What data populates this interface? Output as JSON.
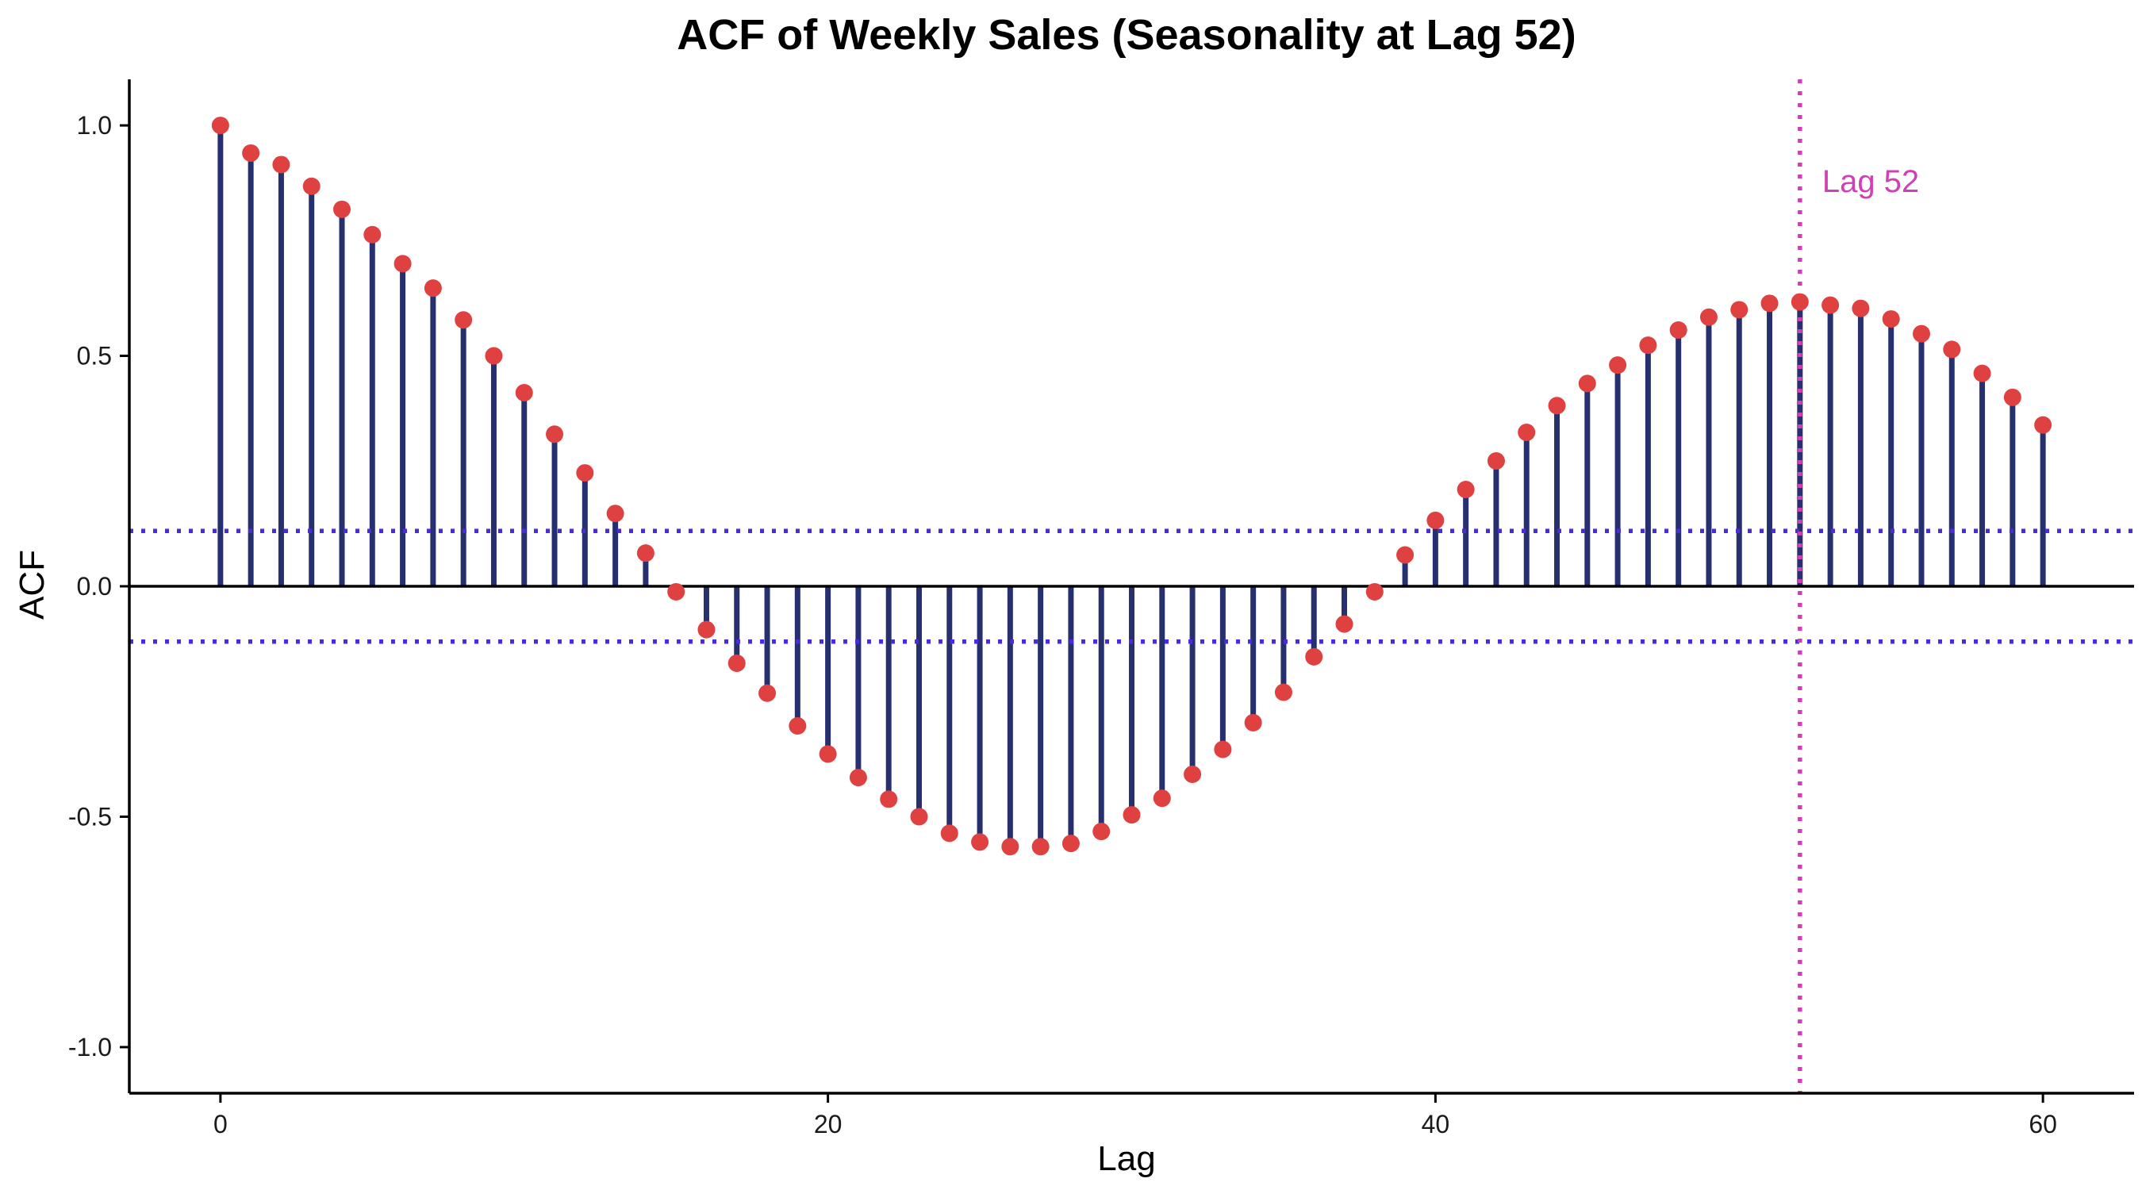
{
  "chart_data": {
    "type": "stem",
    "title": "ACF of Weekly Sales (Seasonality at Lag 52)",
    "xlabel": "Lag",
    "ylabel": "ACF",
    "xlim": [
      -3,
      63
    ],
    "ylim": [
      -1.1,
      1.1
    ],
    "x_ticks": [
      0,
      20,
      40,
      60
    ],
    "x_tick_labels": [
      "0",
      "20",
      "40",
      "60"
    ],
    "y_ticks": [
      -1.0,
      -0.5,
      0.0,
      0.5,
      1.0
    ],
    "y_tick_labels": [
      "-1.0",
      "-0.5",
      "0.0",
      "0.5",
      "1.0"
    ],
    "grid": false,
    "lags": [
      0,
      1,
      2,
      3,
      4,
      5,
      6,
      7,
      8,
      9,
      10,
      11,
      12,
      13,
      14,
      15,
      16,
      17,
      18,
      19,
      20,
      21,
      22,
      23,
      24,
      25,
      26,
      27,
      28,
      29,
      30,
      31,
      32,
      33,
      34,
      35,
      36,
      37,
      38,
      39,
      40,
      41,
      42,
      43,
      44,
      45,
      46,
      47,
      48,
      49,
      50,
      51,
      52,
      53,
      54,
      55,
      56,
      57,
      58,
      59,
      60
    ],
    "acf": [
      1.0,
      0.94,
      0.915,
      0.868,
      0.818,
      0.763,
      0.7,
      0.647,
      0.578,
      0.5,
      0.42,
      0.33,
      0.246,
      0.158,
      0.072,
      -0.012,
      -0.094,
      -0.167,
      -0.232,
      -0.303,
      -0.364,
      -0.415,
      -0.462,
      -0.5,
      -0.536,
      -0.555,
      -0.565,
      -0.565,
      -0.558,
      -0.532,
      -0.496,
      -0.46,
      -0.408,
      -0.354,
      -0.296,
      -0.23,
      -0.153,
      -0.082,
      -0.012,
      0.068,
      0.143,
      0.21,
      0.272,
      0.334,
      0.392,
      0.44,
      0.48,
      0.523,
      0.556,
      0.584,
      0.6,
      0.614,
      0.617,
      0.61,
      0.603,
      0.58,
      0.548,
      0.514,
      0.462,
      0.41,
      0.35
    ],
    "confidence_bound": 0.12,
    "annotation": {
      "text": "Lag 52",
      "x": 52
    },
    "colors": {
      "stem": "#27306f",
      "point": "#df4040",
      "confidence": "#4b2bdc",
      "annotation": "#d13fb8",
      "axis": "#000000"
    }
  }
}
